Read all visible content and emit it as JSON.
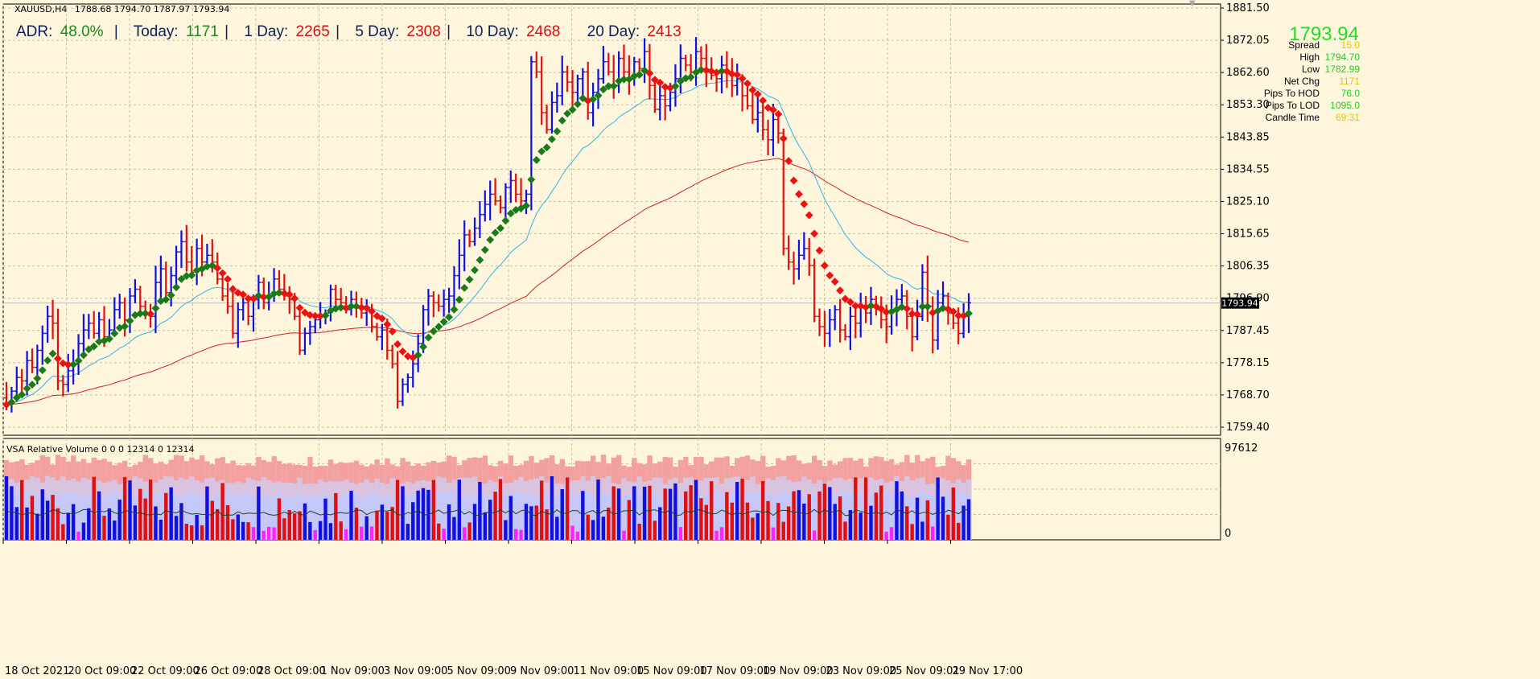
{
  "window": {
    "symbol_label": "XAUUSD,H4",
    "ohlc_header": "1788.68 1794.70 1787.97 1793.94"
  },
  "adr_bar": {
    "adr_label": "ADR:",
    "adr_value": "48.0%",
    "today_label": "Today:",
    "today_value": "1171",
    "day1_label": "1 Day:",
    "day1_value": "2265",
    "day5_label": "5 Day:",
    "day5_value": "2308",
    "day10_label": "10 Day:",
    "day10_value": "2468",
    "day20_label": "20 Day:",
    "day20_value": "2413",
    "separator": "|"
  },
  "info_panel": {
    "price": "1793.94",
    "rows": [
      {
        "label": "Spread",
        "value": "15.0",
        "color": "#e6c400"
      },
      {
        "label": "High",
        "value": "1794.70",
        "color": "#22cc22"
      },
      {
        "label": "Low",
        "value": "1782.99",
        "color": "#22cc22"
      },
      {
        "label": "Net Chg",
        "value": "1171",
        "color": "#e6c400"
      },
      {
        "label": "Pips To HOD",
        "value": "76.0",
        "color": "#22cc22"
      },
      {
        "label": "Pips To LOD",
        "value": "1095.0",
        "color": "#22cc22"
      },
      {
        "label": "Candle Time",
        "value": "69:31",
        "color": "#e6c400"
      }
    ]
  },
  "indicator": {
    "title": "VSA Relative Volume 0 0 0 12314 0 12314",
    "ymax_label": "97612",
    "ymin_label": "0"
  },
  "colors": {
    "background": "#fdf6dc",
    "bull_bar": "#1010e0",
    "bear_bar": "#e01010",
    "ma_green": "#1a7a1a",
    "ma_red": "#ee1111",
    "ma_blue": "#30b4e6",
    "ma_slow": "#d42020",
    "price_label_bg": "#000000",
    "vol_band_outer": "#f2a0a0",
    "vol_band_mid": "#d8c4e0",
    "vol_band_inner": "#c4c8f8",
    "climax_vol": "#ff22ff"
  },
  "chart_data": {
    "type": "ohlc",
    "title": "XAUUSD,H4",
    "y_ticks": [
      "1881.50",
      "1872.05",
      "1862.60",
      "1853.30",
      "1843.85",
      "1834.55",
      "1825.10",
      "1815.65",
      "1806.35",
      "1796.90",
      "1787.45",
      "1778.15",
      "1768.70",
      "1759.40"
    ],
    "x_ticks": [
      "18 Oct 2021",
      "20 Oct 09:00",
      "22 Oct 09:00",
      "26 Oct 09:00",
      "28 Oct 09:00",
      "1 Nov 09:00",
      "3 Nov 09:00",
      "5 Nov 09:00",
      "9 Nov 09:00",
      "11 Nov 09:00",
      "15 Nov 09:00",
      "17 Nov 09:00",
      "19 Nov 09:00",
      "23 Nov 09:00",
      "25 Nov 09:01",
      "29 Nov 17:00"
    ],
    "ylim": [
      1755,
      1882
    ],
    "current_price": 1793.94,
    "current_price_label": "1793.94",
    "closes": [
      1764,
      1768,
      1772,
      1771,
      1777,
      1775,
      1780,
      1785,
      1790,
      1788,
      1771,
      1770,
      1774,
      1776,
      1782,
      1786,
      1788,
      1785,
      1789,
      1784,
      1786,
      1792,
      1794,
      1789,
      1796,
      1798,
      1793,
      1791,
      1790,
      1800,
      1804,
      1797,
      1802,
      1809,
      1812,
      1806,
      1803,
      1810,
      1806,
      1808,
      1806,
      1801,
      1796,
      1793,
      1785,
      1792,
      1794,
      1790,
      1795,
      1800,
      1794,
      1796,
      1801,
      1798,
      1796,
      1795,
      1790,
      1780,
      1785,
      1787,
      1789,
      1790,
      1791,
      1798,
      1795,
      1794,
      1792,
      1795,
      1793,
      1791,
      1792,
      1787,
      1784,
      1786,
      1780,
      1776,
      1765,
      1770,
      1772,
      1776,
      1782,
      1792,
      1796,
      1794,
      1793,
      1795,
      1796,
      1802,
      1808,
      1814,
      1812,
      1816,
      1820,
      1823,
      1826,
      1824,
      1822,
      1828,
      1830,
      1826,
      1824,
      1826,
      1865,
      1862,
      1850,
      1845,
      1853,
      1855,
      1862,
      1859,
      1856,
      1860,
      1862,
      1850,
      1856,
      1860,
      1865,
      1862,
      1858,
      1866,
      1862,
      1860,
      1865,
      1863,
      1868,
      1858,
      1851,
      1855,
      1852,
      1856,
      1860,
      1866,
      1864,
      1862,
      1868,
      1866,
      1862,
      1861,
      1860,
      1864,
      1862,
      1858,
      1860,
      1855,
      1852,
      1848,
      1850,
      1845,
      1842,
      1848,
      1844,
      1810,
      1806,
      1804,
      1808,
      1810,
      1805,
      1790,
      1787,
      1785,
      1789,
      1792,
      1786,
      1784,
      1790,
      1788,
      1793,
      1791,
      1795,
      1792,
      1789,
      1787,
      1792,
      1795,
      1796,
      1790,
      1784,
      1790,
      1803,
      1793,
      1783,
      1794,
      1796,
      1791,
      1788,
      1785,
      1790,
      1794
    ]
  }
}
